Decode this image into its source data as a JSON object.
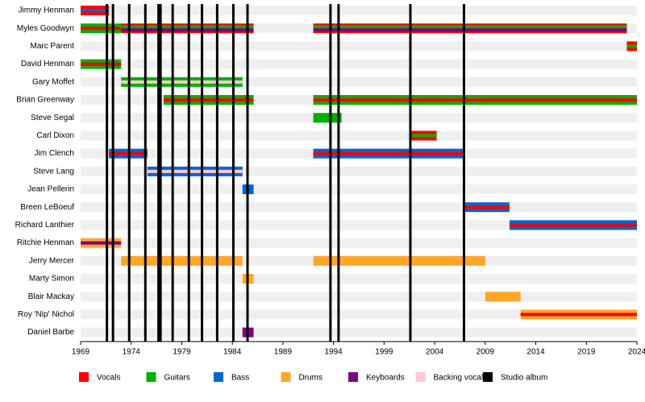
{
  "chart_data": {
    "type": "timeline",
    "xlim": [
      1969,
      2024
    ],
    "xticks": [
      1969,
      1974,
      1979,
      1984,
      1989,
      1994,
      1999,
      2004,
      2009,
      2014,
      2019,
      2024
    ],
    "roles": [
      {
        "name": "Vocals",
        "color": "#ff0000"
      },
      {
        "name": "Guitars",
        "color": "#00b000"
      },
      {
        "name": "Bass",
        "color": "#0066cc"
      },
      {
        "name": "Drums",
        "color": "#ffa629"
      },
      {
        "name": "Keyboards",
        "color": "#800080"
      },
      {
        "name": "Backing vocals",
        "color": "#ffc8d2"
      }
    ],
    "studio_albums": {
      "name": "Studio album",
      "color": "#000000",
      "years": [
        1971.6,
        1972.2,
        1973.8,
        1975.4,
        1976.7,
        1976.9,
        1978.1,
        1979.7,
        1981.0,
        1982.5,
        1984.1,
        1985.5,
        1993.7,
        1994.5,
        2001.6,
        2006.9
      ]
    },
    "members": [
      {
        "name": "Jimmy Henman",
        "periods": [
          {
            "start": 1969,
            "end": 1971.8,
            "roles": [
              "Vocals",
              "Bass"
            ]
          }
        ]
      },
      {
        "name": "Myles Goodwyn",
        "periods": [
          {
            "start": 1969,
            "end": 1973,
            "roles": [
              "Guitars",
              "Vocals"
            ]
          },
          {
            "start": 1973,
            "end": 1986.1,
            "roles": [
              "Vocals",
              "Guitars",
              "Keyboards"
            ]
          },
          {
            "start": 1992,
            "end": 2023,
            "roles": [
              "Vocals",
              "Guitars",
              "Keyboards"
            ]
          }
        ]
      },
      {
        "name": "Marc Parent",
        "periods": [
          {
            "start": 2023,
            "end": 2024,
            "roles": [
              "Vocals",
              "Guitars"
            ]
          }
        ]
      },
      {
        "name": "David Henman",
        "periods": [
          {
            "start": 1969,
            "end": 1973,
            "roles": [
              "Guitars",
              "Vocals"
            ]
          }
        ]
      },
      {
        "name": "Gary Moffet",
        "periods": [
          {
            "start": 1973,
            "end": 1985,
            "roles": [
              "Guitars",
              "Backing vocals"
            ]
          }
        ]
      },
      {
        "name": "Brian Greenway",
        "periods": [
          {
            "start": 1977.2,
            "end": 1986.1,
            "roles": [
              "Guitars",
              "Vocals"
            ]
          },
          {
            "start": 1992,
            "end": 2024,
            "roles": [
              "Guitars",
              "Vocals"
            ]
          }
        ]
      },
      {
        "name": "Steve Segal",
        "periods": [
          {
            "start": 1992,
            "end": 1994.8,
            "roles": [
              "Guitars"
            ]
          }
        ]
      },
      {
        "name": "Carl Dixon",
        "periods": [
          {
            "start": 2001.7,
            "end": 2004.2,
            "roles": [
              "Vocals",
              "Guitars"
            ]
          }
        ]
      },
      {
        "name": "Jim Clench",
        "periods": [
          {
            "start": 1971.8,
            "end": 1975.6,
            "roles": [
              "Bass",
              "Vocals"
            ]
          },
          {
            "start": 1992,
            "end": 2007,
            "roles": [
              "Bass",
              "Vocals"
            ]
          }
        ]
      },
      {
        "name": "Steve Lang",
        "periods": [
          {
            "start": 1975.6,
            "end": 1985,
            "roles": [
              "Bass",
              "Backing vocals"
            ]
          }
        ]
      },
      {
        "name": "Jean Pellerin",
        "periods": [
          {
            "start": 1985,
            "end": 1986.1,
            "roles": [
              "Bass"
            ]
          }
        ]
      },
      {
        "name": "Breen LeBoeuf",
        "periods": [
          {
            "start": 2007,
            "end": 2011.4,
            "roles": [
              "Bass",
              "Vocals"
            ]
          }
        ]
      },
      {
        "name": "Richard Lanthier",
        "periods": [
          {
            "start": 2011.4,
            "end": 2024,
            "roles": [
              "Bass",
              "Vocals"
            ]
          }
        ]
      },
      {
        "name": "Ritchie Henman",
        "periods": [
          {
            "start": 1969,
            "end": 1973,
            "roles": [
              "Drums",
              "Keyboards"
            ]
          }
        ]
      },
      {
        "name": "Jerry Mercer",
        "periods": [
          {
            "start": 1973,
            "end": 1985,
            "roles": [
              "Drums"
            ]
          },
          {
            "start": 1992,
            "end": 2009,
            "roles": [
              "Drums"
            ]
          }
        ]
      },
      {
        "name": "Marty Simon",
        "periods": [
          {
            "start": 1985,
            "end": 1986.1,
            "roles": [
              "Drums"
            ]
          }
        ]
      },
      {
        "name": "Blair Mackay",
        "periods": [
          {
            "start": 2009,
            "end": 2012.5,
            "roles": [
              "Drums"
            ]
          }
        ]
      },
      {
        "name": "Roy 'Nip' Nichol",
        "periods": [
          {
            "start": 2012.5,
            "end": 2024,
            "roles": [
              "Drums",
              "Vocals"
            ]
          }
        ]
      },
      {
        "name": "Daniel Barbe",
        "periods": [
          {
            "start": 1985,
            "end": 1986.1,
            "roles": [
              "Keyboards"
            ]
          }
        ]
      }
    ]
  }
}
